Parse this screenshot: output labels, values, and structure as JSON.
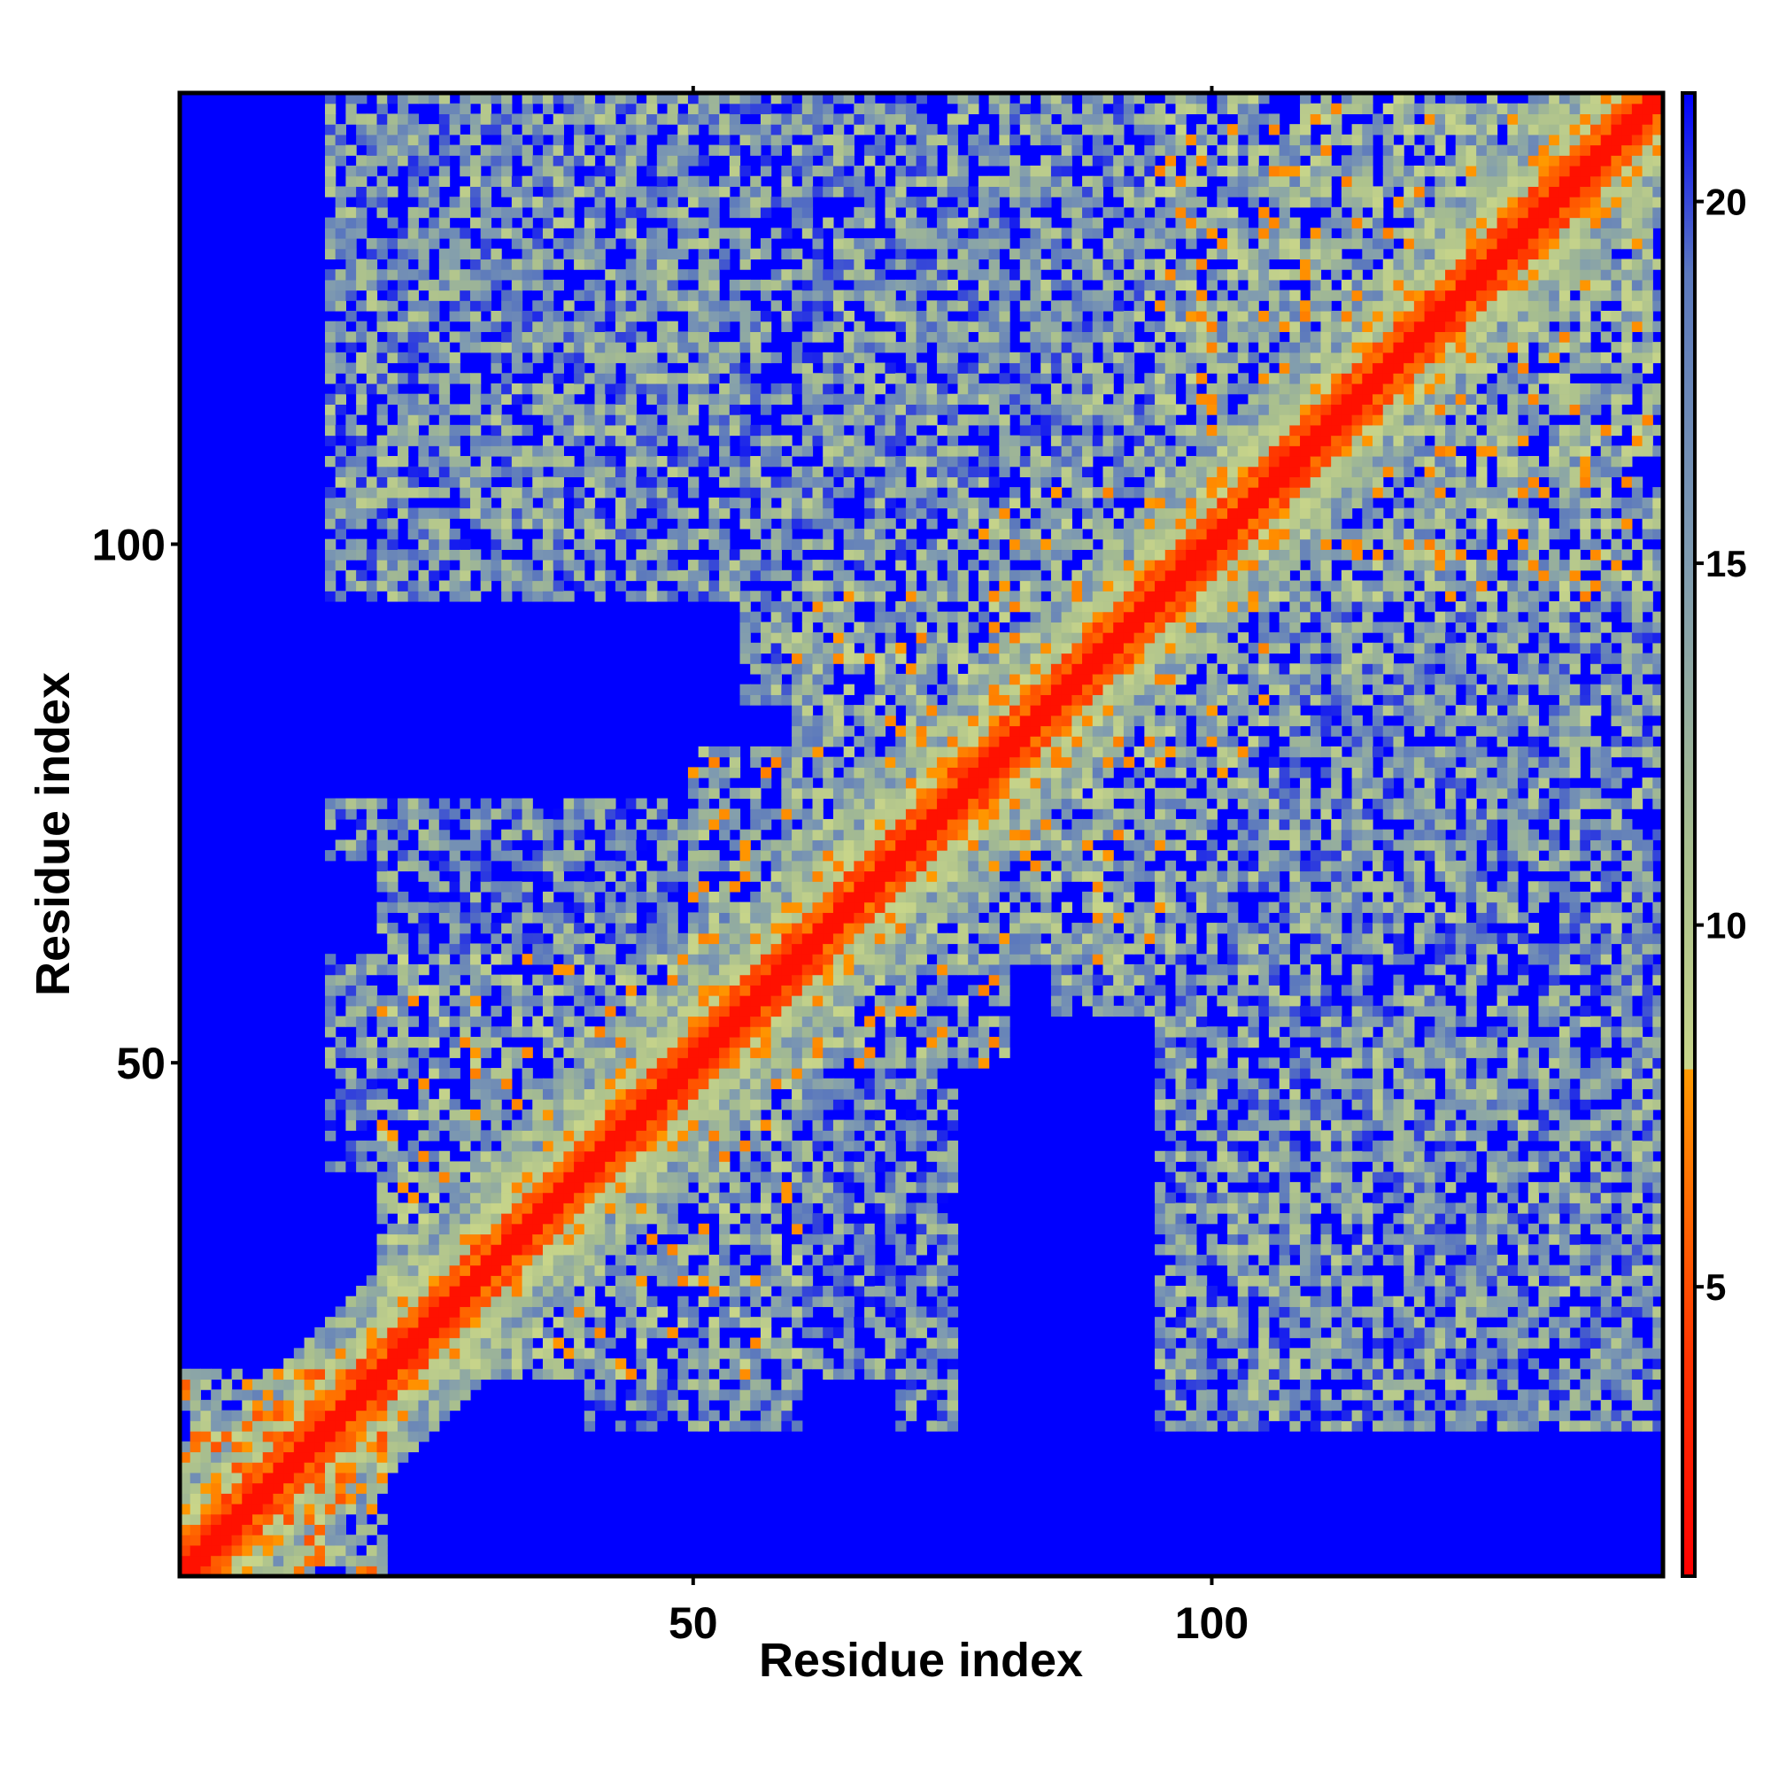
{
  "chart_data": {
    "type": "heatmap",
    "title": "",
    "xlabel": "Residue index",
    "ylabel": "Residue index",
    "n_residues": 143,
    "xlim": [
      1,
      143
    ],
    "ylim": [
      1,
      143
    ],
    "x_ticks": [
      50,
      100
    ],
    "y_ticks": [
      50,
      100
    ],
    "x_tick_labels": [
      "50",
      "100"
    ],
    "y_tick_labels": [
      "50",
      "100"
    ],
    "value_description": "pairwise distance matrix, values above ~20 shown as background",
    "colorbar": {
      "range": [
        1,
        21.5
      ],
      "ticks": [
        5,
        10,
        15,
        20
      ],
      "tick_labels": [
        "5",
        "10",
        "15",
        "20"
      ],
      "stops": [
        {
          "value": 1,
          "color": "#ff0000"
        },
        {
          "value": 4,
          "color": "#ff3300"
        },
        {
          "value": 8,
          "color": "#ff9900"
        },
        {
          "value": 8.01,
          "color": "#c8d58a"
        },
        {
          "value": 11,
          "color": "#a9bf8e"
        },
        {
          "value": 15,
          "color": "#7f9bb0"
        },
        {
          "value": 19,
          "color": "#5b78bd"
        },
        {
          "value": 21.5,
          "color": "#0000ff"
        }
      ]
    },
    "background_color": "#0000ff",
    "diagonal_color": "#ff0000",
    "contact_clusters": [
      {
        "x": [
          1,
          20
        ],
        "y": [
          1,
          20
        ],
        "level": 9
      },
      {
        "x": [
          20,
          60
        ],
        "y": [
          20,
          60
        ],
        "level": 11
      },
      {
        "x": [
          60,
          95
        ],
        "y": [
          60,
          95
        ],
        "level": 11
      },
      {
        "x": [
          95,
          143
        ],
        "y": [
          95,
          143
        ],
        "level": 11
      },
      {
        "x": [
          20,
          60
        ],
        "y": [
          60,
          75
        ],
        "level": 14
      },
      {
        "x": [
          15,
          60
        ],
        "y": [
          95,
          145
        ],
        "level": 13
      },
      {
        "x": [
          65,
          85
        ],
        "y": [
          95,
          135
        ],
        "level": 13
      },
      {
        "x": [
          85,
          145
        ],
        "y": [
          55,
          95
        ],
        "level": 13
      },
      {
        "x": [
          95,
          145
        ],
        "y": [
          20,
          60
        ],
        "level": 13
      },
      {
        "x": [
          70,
          75
        ],
        "y": [
          15,
          60
        ],
        "level": 14
      },
      {
        "x": [
          40,
          60
        ],
        "y": [
          15,
          40
        ],
        "level": 14
      },
      {
        "x": [
          60,
          80
        ],
        "y": [
          50,
          70
        ],
        "level": 11
      },
      {
        "x": [
          75,
          95
        ],
        "y": [
          85,
          105
        ],
        "level": 11
      }
    ]
  }
}
